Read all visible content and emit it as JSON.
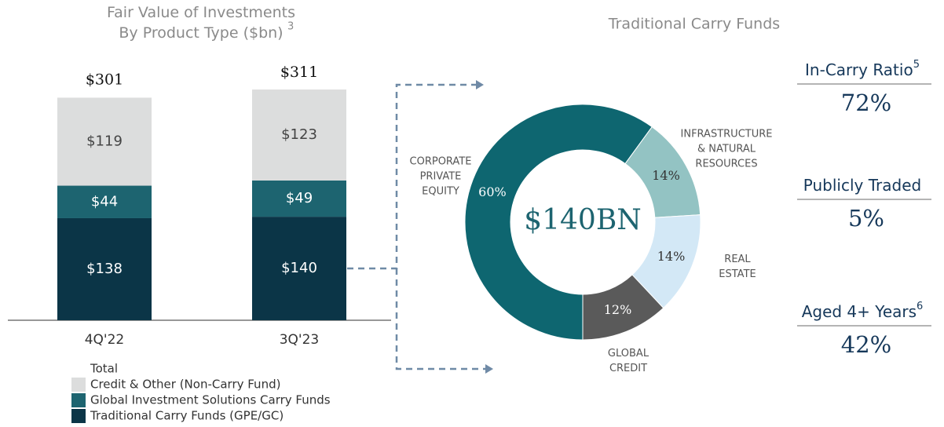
{
  "chart_data": [
    {
      "type": "stacked-bar",
      "title": [
        "Fair Value of Investments",
        "By Product Type ($bn)"
      ],
      "title_footnote": "3",
      "categories": [
        "4Q'22",
        "3Q'23"
      ],
      "series": [
        {
          "name": "Traditional Carry Funds (GPE/GC)",
          "color": "#0b3547",
          "values": [
            138,
            140
          ],
          "value_labels": [
            "$138",
            "$140"
          ]
        },
        {
          "name": "Global Investment Solutions Carry Funds",
          "color": "#1d6470",
          "values": [
            44,
            49
          ],
          "value_labels": [
            "$44",
            "$49"
          ]
        },
        {
          "name": "Credit & Other (Non-Carry Fund)",
          "color": "#dcdddd",
          "values": [
            119,
            123
          ],
          "value_labels": [
            "$119",
            "$123"
          ]
        }
      ],
      "totals": [
        301,
        311
      ],
      "total_labels": [
        "$301",
        "$311"
      ],
      "legend_title": "Total"
    },
    {
      "type": "donut",
      "title": "Traditional Carry Funds",
      "center_label": "$140BN",
      "categories": [
        "CORPORATE PRIVATE EQUITY",
        "INFRASTRUCTURE & NATURAL RESOURCES",
        "REAL ESTATE",
        "GLOBAL CREDIT"
      ],
      "values": [
        60,
        14,
        14,
        12
      ],
      "value_labels": [
        "60%",
        "14%",
        "14%",
        "12%"
      ],
      "colors": [
        "#0e6670",
        "#93c3c3",
        "#d3e8f6",
        "#5a5a5a"
      ]
    }
  ],
  "metrics": [
    {
      "label": "In-Carry Ratio",
      "footnote": "5",
      "value": 72,
      "value_label": "72%"
    },
    {
      "label": "Publicly Traded",
      "value": 5,
      "value_label": "5%"
    },
    {
      "label": "Aged 4+ Years",
      "footnote": "6",
      "value": 42,
      "value_label": "42%"
    }
  ]
}
